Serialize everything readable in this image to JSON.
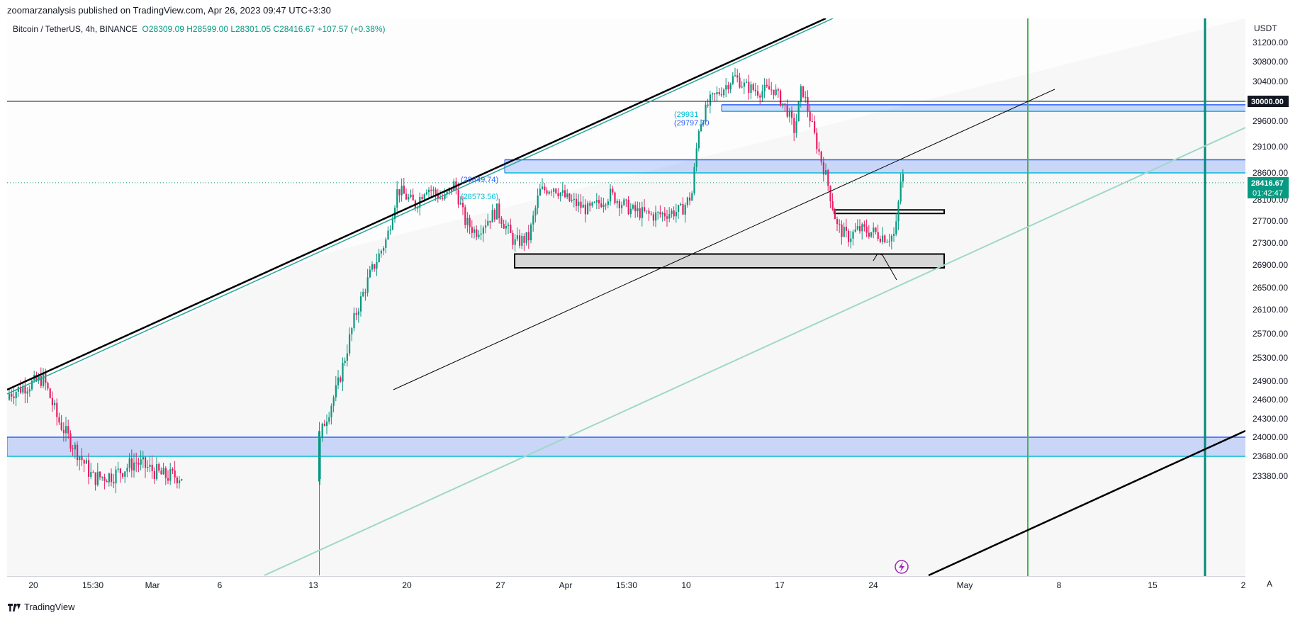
{
  "header": {
    "publisher": "zoomarzanalysis published on TradingView.com, Apr 26, 2023 09:47 UTC+3:30"
  },
  "legend": {
    "symbol": "Bitcoin / TetherUS, 4h, BINANCE",
    "open": "O28309.09",
    "high": "H28599.00",
    "low": "L28301.05",
    "close": "C28416.67",
    "change": "+107.57 (+0.38%)"
  },
  "axis": {
    "currency": "USDT",
    "scale_button": "A"
  },
  "price_badges": {
    "level_30000": "30000.00",
    "last_price": "28416.67",
    "countdown": "01:42:47"
  },
  "annotations": {
    "a1": "(29931",
    "a2": "(29797.70",
    "a3": "(28849.74)",
    "a4": "(28573.56)"
  },
  "footer": {
    "brand": "TradingView"
  },
  "colors": {
    "up": "#089981",
    "down": "#f23645",
    "candle_down": "#e91e63",
    "zone_blue": "#2962ff",
    "zone_blue_fill": "rgba(41,98,255,0.22)",
    "zone_gray_fill": "rgba(150,150,150,0.32)",
    "teal_line": "#26a69a",
    "green_vline": "#4caf50",
    "badge_dark": "#131722",
    "badge_green": "#089981"
  },
  "chart_data": {
    "type": "candlestick",
    "ylabels": [
      "31200.00",
      "30800.00",
      "30400.00",
      "29600.00",
      "29100.00",
      "28600.00",
      "28100.00",
      "27700.00",
      "27300.00",
      "26900.00",
      "26500.00",
      "26100.00",
      "25700.00",
      "25300.00",
      "24900.00",
      "24600.00",
      "24300.00",
      "24000.00",
      "23680.00",
      "23380.00"
    ],
    "yticks": [
      31200,
      30800,
      30400,
      29600,
      29100,
      28600,
      28100,
      27700,
      27300,
      26900,
      26500,
      26100,
      25700,
      25300,
      24900,
      24600,
      24300,
      24000,
      23680,
      23380
    ],
    "xlabels": [
      "20",
      "15:30",
      "Mar",
      "6",
      "13",
      "20",
      "27",
      "Apr",
      "15:30",
      "10",
      "17",
      "24",
      "May",
      "8",
      "15",
      "2"
    ],
    "zones": [
      {
        "type": "blue",
        "from": 28600,
        "to": 28849.74
      },
      {
        "type": "blue",
        "from": 29797.7,
        "to": 29931
      },
      {
        "type": "blue",
        "from": 23680,
        "to": 24000
      },
      {
        "type": "gray",
        "from": 26850,
        "to": 27100
      },
      {
        "type": "white",
        "from": 27850,
        "to": 27910
      }
    ],
    "hlines": [
      {
        "price": 30000,
        "color": "#131722"
      }
    ],
    "last_price": 28416.67
  }
}
